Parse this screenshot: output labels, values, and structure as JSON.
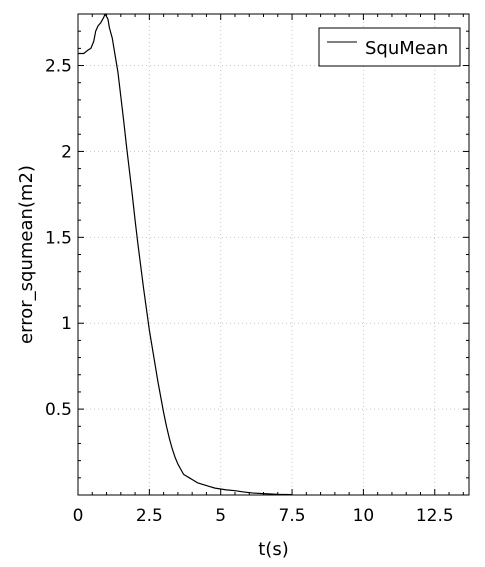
{
  "chart_data": {
    "type": "line",
    "title": "",
    "xlabel": "t(s)",
    "ylabel": "error_squmean(m2)",
    "xlim": [
      0,
      13.7
    ],
    "ylim": [
      0,
      2.8
    ],
    "grid": true,
    "legend_position": "top-right",
    "xticks": [
      0,
      2.5,
      5,
      7.5,
      10,
      12.5
    ],
    "xtick_labels": [
      "0",
      "2.5",
      "5",
      "7.5",
      "10",
      "12.5"
    ],
    "yticks": [
      0.5,
      1,
      1.5,
      2,
      2.5
    ],
    "ytick_labels": [
      "0.5",
      "1",
      "1.5",
      "2",
      "2.5"
    ],
    "series": [
      {
        "name": "SquMean",
        "color": "#000000",
        "x": [
          0,
          0.2,
          0.35,
          0.45,
          0.55,
          0.62,
          0.7,
          0.8,
          0.9,
          0.95,
          1.05,
          1.1,
          1.2,
          1.3,
          1.4,
          1.5,
          1.6,
          1.7,
          1.8,
          1.9,
          2.0,
          2.1,
          2.2,
          2.3,
          2.4,
          2.5,
          2.6,
          2.7,
          2.8,
          2.9,
          3.0,
          3.1,
          3.2,
          3.3,
          3.4,
          3.5,
          3.6,
          3.7,
          3.8,
          3.9,
          4.0,
          4.2,
          4.4,
          4.6,
          4.8,
          5.0,
          5.2,
          5.5,
          5.8,
          6.1,
          6.5,
          7.0,
          7.5
        ],
        "y": [
          2.57,
          2.57,
          2.59,
          2.6,
          2.64,
          2.7,
          2.73,
          2.75,
          2.78,
          2.8,
          2.77,
          2.72,
          2.66,
          2.56,
          2.46,
          2.32,
          2.18,
          2.03,
          1.89,
          1.75,
          1.6,
          1.46,
          1.33,
          1.2,
          1.08,
          0.96,
          0.86,
          0.76,
          0.66,
          0.57,
          0.48,
          0.4,
          0.33,
          0.27,
          0.22,
          0.18,
          0.15,
          0.12,
          0.11,
          0.1,
          0.09,
          0.07,
          0.06,
          0.05,
          0.04,
          0.035,
          0.03,
          0.025,
          0.018,
          0.012,
          0.008,
          0.004,
          0.002
        ]
      }
    ]
  }
}
